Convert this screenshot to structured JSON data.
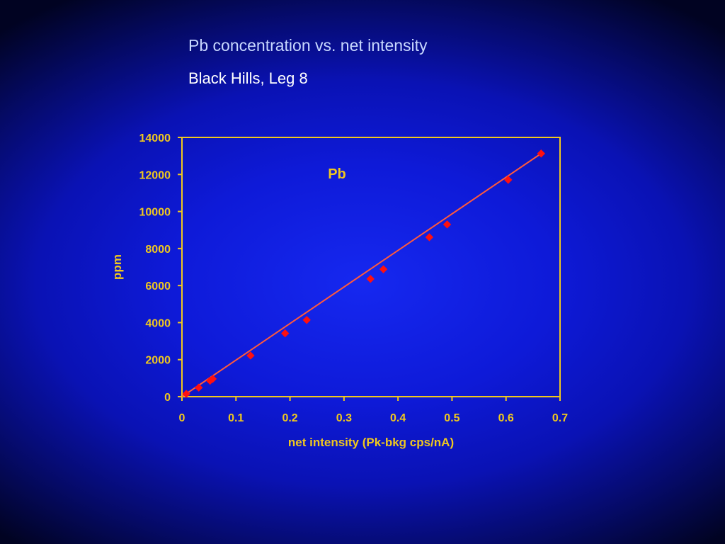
{
  "slide": {
    "title": "Pb concentration vs. net intensity",
    "subtitle": "Black Hills, Leg 8"
  },
  "colors": {
    "axis": "#f0c81e",
    "label": "#f0c81e",
    "marker": "#ff1010",
    "fit_line": "#ff5a3c"
  },
  "chart_data": {
    "type": "scatter",
    "title": "",
    "annotation": "Pb",
    "xlabel": "net intensity (Pk-bkg cps/nA)",
    "ylabel": "ppm",
    "xlim": [
      0,
      0.7
    ],
    "ylim": [
      0,
      14000
    ],
    "xticks": [
      0,
      0.1,
      0.2,
      0.3,
      0.4,
      0.5,
      0.6,
      0.7
    ],
    "yticks": [
      0,
      2000,
      4000,
      6000,
      8000,
      10000,
      12000,
      14000
    ],
    "xtick_labels": [
      "0",
      "0.1",
      "0.2",
      "0.3",
      "0.4",
      "0.5",
      "0.6",
      "0.7"
    ],
    "ytick_labels": [
      "0",
      "2000",
      "4000",
      "6000",
      "8000",
      "10000",
      "12000",
      "14000"
    ],
    "grid": false,
    "legend": "none",
    "series": [
      {
        "marker": "diamond",
        "x": [
          0.008,
          0.031,
          0.052,
          0.057,
          0.127,
          0.191,
          0.231,
          0.349,
          0.373,
          0.458,
          0.491,
          0.604,
          0.665
        ],
        "y": [
          150,
          490,
          860,
          960,
          2220,
          3420,
          4140,
          6360,
          6880,
          8610,
          9300,
          11710,
          13130
        ]
      }
    ],
    "trendline": {
      "type": "linear",
      "x": [
        0.0,
        0.665
      ],
      "y": [
        0,
        13130
      ]
    }
  }
}
